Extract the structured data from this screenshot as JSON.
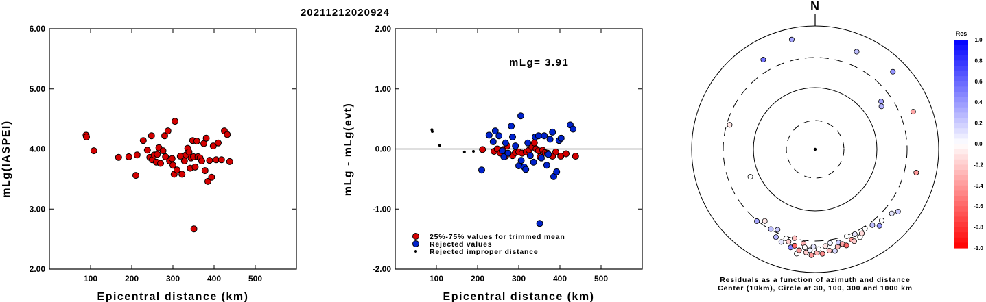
{
  "title": "20211212020924",
  "colors": {
    "red": "#d40000",
    "blue": "#0022cc",
    "black": "#000000"
  },
  "chart_data": [
    {
      "type": "scatter",
      "xlabel": "Epicentral distance (km)",
      "ylabel": "mLg(IASPEI)",
      "xlim": [
        0,
        600
      ],
      "ylim": [
        2.0,
        6.0
      ],
      "xticks": [
        "100",
        "200",
        "300",
        "400",
        "500"
      ],
      "yticks": [
        "2.00",
        "3.00",
        "4.00",
        "5.00",
        "6.00"
      ],
      "series": [
        {
          "color": "red",
          "points": [
            [
              89,
              4.23
            ],
            [
              90,
              4.2
            ],
            [
              108,
              3.97
            ],
            [
              168,
              3.86
            ],
            [
              193,
              3.87
            ],
            [
              210,
              3.56
            ],
            [
              213,
              3.9
            ],
            [
              228,
              4.14
            ],
            [
              238,
              3.98
            ],
            [
              244,
              3.86
            ],
            [
              248,
              4.22
            ],
            [
              250,
              3.82
            ],
            [
              255,
              3.9
            ],
            [
              260,
              3.78
            ],
            [
              262,
              3.91
            ],
            [
              266,
              4.02
            ],
            [
              270,
              3.76
            ],
            [
              276,
              3.97
            ],
            [
              280,
              4.22
            ],
            [
              282,
              3.87
            ],
            [
              288,
              4.3
            ],
            [
              292,
              3.8
            ],
            [
              298,
              3.84
            ],
            [
              300,
              3.73
            ],
            [
              303,
              3.58
            ],
            [
              305,
              4.46
            ],
            [
              310,
              3.65
            ],
            [
              318,
              3.88
            ],
            [
              322,
              3.58
            ],
            [
              328,
              3.8
            ],
            [
              332,
              3.9
            ],
            [
              336,
              4.01
            ],
            [
              339,
              3.95
            ],
            [
              342,
              3.68
            ],
            [
              344,
              3.85
            ],
            [
              348,
              4.14
            ],
            [
              350,
              3.87
            ],
            [
              351,
              2.67
            ],
            [
              354,
              3.7
            ],
            [
              358,
              4.13
            ],
            [
              361,
              3.87
            ],
            [
              366,
              3.85
            ],
            [
              370,
              3.8
            ],
            [
              375,
              4.09
            ],
            [
              378,
              3.64
            ],
            [
              381,
              4.18
            ],
            [
              385,
              3.46
            ],
            [
              389,
              3.81
            ],
            [
              394,
              3.53
            ],
            [
              398,
              4.05
            ],
            [
              405,
              3.82
            ],
            [
              410,
              4.1
            ],
            [
              418,
              3.82
            ],
            [
              425,
              4.3
            ],
            [
              432,
              4.24
            ],
            [
              438,
              3.79
            ]
          ]
        }
      ]
    },
    {
      "type": "scatter",
      "xlabel": "Epicentral distance (km)",
      "ylabel": "mLg - mLg(evt)",
      "xlim": [
        0,
        600
      ],
      "ylim": [
        -2.0,
        2.0
      ],
      "xticks": [
        "100",
        "200",
        "300",
        "400",
        "500"
      ],
      "yticks": [
        "-2.00",
        "-1.00",
        "0.00",
        "1.00",
        "2.00"
      ],
      "annotation": "mLg= 3.91",
      "legend": [
        {
          "marker": "red",
          "label": "25%-75% values for trimmed mean"
        },
        {
          "marker": "blue",
          "label": "Rejected values"
        },
        {
          "marker": "small-black",
          "label": "Rejected improper distance"
        }
      ],
      "series": [
        {
          "label": "25%-75% values for trimmed mean",
          "color": "red",
          "points": [
            [
              212,
              -0.01
            ],
            [
              240,
              -0.04
            ],
            [
              248,
              0.0
            ],
            [
              255,
              -0.07
            ],
            [
              262,
              -0.01
            ],
            [
              268,
              -0.12
            ],
            [
              272,
              0.05
            ],
            [
              285,
              -0.11
            ],
            [
              292,
              -0.06
            ],
            [
              300,
              -0.05
            ],
            [
              308,
              -0.07
            ],
            [
              318,
              -0.05
            ],
            [
              325,
              -0.02
            ],
            [
              332,
              0.03
            ],
            [
              338,
              0.1
            ],
            [
              342,
              0.0
            ],
            [
              348,
              -0.03
            ],
            [
              352,
              -0.13
            ],
            [
              358,
              -0.02
            ],
            [
              364,
              -0.06
            ],
            [
              370,
              -0.07
            ],
            [
              382,
              -0.12
            ],
            [
              390,
              -0.05
            ],
            [
              402,
              -0.12
            ],
            [
              415,
              -0.08
            ],
            [
              438,
              -0.12
            ]
          ]
        },
        {
          "label": "Rejected values",
          "color": "blue",
          "points": [
            [
              210,
              -0.35
            ],
            [
              228,
              0.23
            ],
            [
              238,
              0.12
            ],
            [
              243,
              0.3
            ],
            [
              252,
              0.22
            ],
            [
              260,
              -0.03
            ],
            [
              264,
              -0.13
            ],
            [
              268,
              0.1
            ],
            [
              274,
              -0.07
            ],
            [
              282,
              0.38
            ],
            [
              285,
              0.2
            ],
            [
              292,
              0.05
            ],
            [
              300,
              -0.28
            ],
            [
              305,
              0.55
            ],
            [
              306,
              -0.19
            ],
            [
              313,
              -0.3
            ],
            [
              317,
              -0.34
            ],
            [
              322,
              0.1
            ],
            [
              328,
              -0.11
            ],
            [
              336,
              -0.22
            ],
            [
              340,
              0.2
            ],
            [
              348,
              0.22
            ],
            [
              351,
              -1.24
            ],
            [
              355,
              -0.15
            ],
            [
              362,
              0.22
            ],
            [
              368,
              -0.27
            ],
            [
              372,
              -0.09
            ],
            [
              376,
              0.16
            ],
            [
              382,
              0.28
            ],
            [
              385,
              -0.46
            ],
            [
              392,
              -0.38
            ],
            [
              398,
              0.14
            ],
            [
              403,
              0.18
            ],
            [
              425,
              0.4
            ],
            [
              432,
              0.33
            ]
          ]
        },
        {
          "label": "Rejected improper distance",
          "color": "black",
          "small": true,
          "points": [
            [
              89,
              0.32
            ],
            [
              90,
              0.29
            ],
            [
              108,
              0.06
            ],
            [
              168,
              -0.05
            ],
            [
              190,
              -0.04
            ]
          ]
        }
      ]
    },
    {
      "type": "polar-scatter",
      "label_north": "N",
      "caption_line1": "Residuals as a function of azimuth and distance",
      "caption_line2": "Center (10km), Circle at 30, 100, 300 and 1000 km",
      "color_scale_title": "Res",
      "color_scale_ticks": [
        "1.0",
        "0.8",
        "0.6",
        "0.4",
        "0.2",
        "0.0",
        "-0.2",
        "-0.4",
        "-0.6",
        "-0.8",
        "-1.0"
      ],
      "rings": [
        {
          "label": "30",
          "style": "dashed"
        },
        {
          "label": "100",
          "style": "solid"
        },
        {
          "label": "300",
          "style": "dashed"
        },
        {
          "label": "1000",
          "style": "solid"
        }
      ],
      "points": [
        {
          "az": -30,
          "r": 0.84,
          "res": 0.55
        },
        {
          "az": -12,
          "r": 0.91,
          "res": 0.35
        },
        {
          "az": 23,
          "r": 0.86,
          "res": 0.25
        },
        {
          "az": 45,
          "r": 0.89,
          "res": 0.42
        },
        {
          "az": 54,
          "r": 0.66,
          "res": 0.35
        },
        {
          "az": 57,
          "r": 0.64,
          "res": 0.3
        },
        {
          "az": 69,
          "r": 0.85,
          "res": -0.35
        },
        {
          "az": 103,
          "r": 0.84,
          "res": -0.4
        },
        {
          "az": -74,
          "r": 0.72,
          "res": -0.1
        },
        {
          "az": -113,
          "r": 0.57,
          "res": 0.0
        },
        {
          "az": -141,
          "r": 0.75,
          "res": 0.35
        },
        {
          "az": -145,
          "r": 0.71,
          "res": -0.1
        },
        {
          "az": -151,
          "r": 0.74,
          "res": 0.25
        },
        {
          "az": -155,
          "r": 0.72,
          "res": 0.2
        },
        {
          "az": -156,
          "r": 0.78,
          "res": 0.3
        },
        {
          "az": -160,
          "r": 0.8,
          "res": 0.1
        },
        {
          "az": -162,
          "r": 0.76,
          "res": 0.0
        },
        {
          "az": -164,
          "r": 0.78,
          "res": -0.2
        },
        {
          "az": -166,
          "r": 0.82,
          "res": 0.5
        },
        {
          "az": -167,
          "r": 0.74,
          "res": -0.25
        },
        {
          "az": -168,
          "r": 0.8,
          "res": -0.6
        },
        {
          "az": -170,
          "r": 0.86,
          "res": 0.0
        },
        {
          "az": -171,
          "r": 0.83,
          "res": -0.4
        },
        {
          "az": -173,
          "r": 0.77,
          "res": -0.3
        },
        {
          "az": -174,
          "r": 0.8,
          "res": 0.0
        },
        {
          "az": -175,
          "r": 0.84,
          "res": -0.2
        },
        {
          "az": -177,
          "r": 0.82,
          "res": 0.05
        },
        {
          "az": -178,
          "r": 0.86,
          "res": -0.4
        },
        {
          "az": -179,
          "r": 0.79,
          "res": 0.1
        },
        {
          "az": 179,
          "r": 0.84,
          "res": -0.3
        },
        {
          "az": 178,
          "r": 0.81,
          "res": 0.0
        },
        {
          "az": 176,
          "r": 0.85,
          "res": -0.45
        },
        {
          "az": 174,
          "r": 0.79,
          "res": -0.1
        },
        {
          "az": 172,
          "r": 0.83,
          "res": -0.25
        },
        {
          "az": 171,
          "r": 0.77,
          "res": 0.05
        },
        {
          "az": 169,
          "r": 0.84,
          "res": 0.15
        },
        {
          "az": 167,
          "r": 0.81,
          "res": -0.3
        },
        {
          "az": 166,
          "r": 0.78,
          "res": 0.2
        },
        {
          "az": 164,
          "r": 0.8,
          "res": -0.35
        },
        {
          "az": 162,
          "r": 0.82,
          "res": -0.6
        },
        {
          "az": 160,
          "r": 0.75,
          "res": 0.0
        },
        {
          "az": 158,
          "r": 0.79,
          "res": -0.4
        },
        {
          "az": 157,
          "r": 0.81,
          "res": -0.2
        },
        {
          "az": 155,
          "r": 0.76,
          "res": 0.1
        },
        {
          "az": 153,
          "r": 0.8,
          "res": 0.0
        },
        {
          "az": 151,
          "r": 0.78,
          "res": -0.15
        },
        {
          "az": 148,
          "r": 0.76,
          "res": 0.0
        },
        {
          "az": 143,
          "r": 0.77,
          "res": 0.25
        },
        {
          "az": 140,
          "r": 0.81,
          "res": 0.4
        },
        {
          "az": 137,
          "r": 0.79,
          "res": 0.0
        },
        {
          "az": 130,
          "r": 0.81,
          "res": 0.1
        },
        {
          "az": 127,
          "r": 0.84,
          "res": 0.2
        }
      ]
    }
  ]
}
